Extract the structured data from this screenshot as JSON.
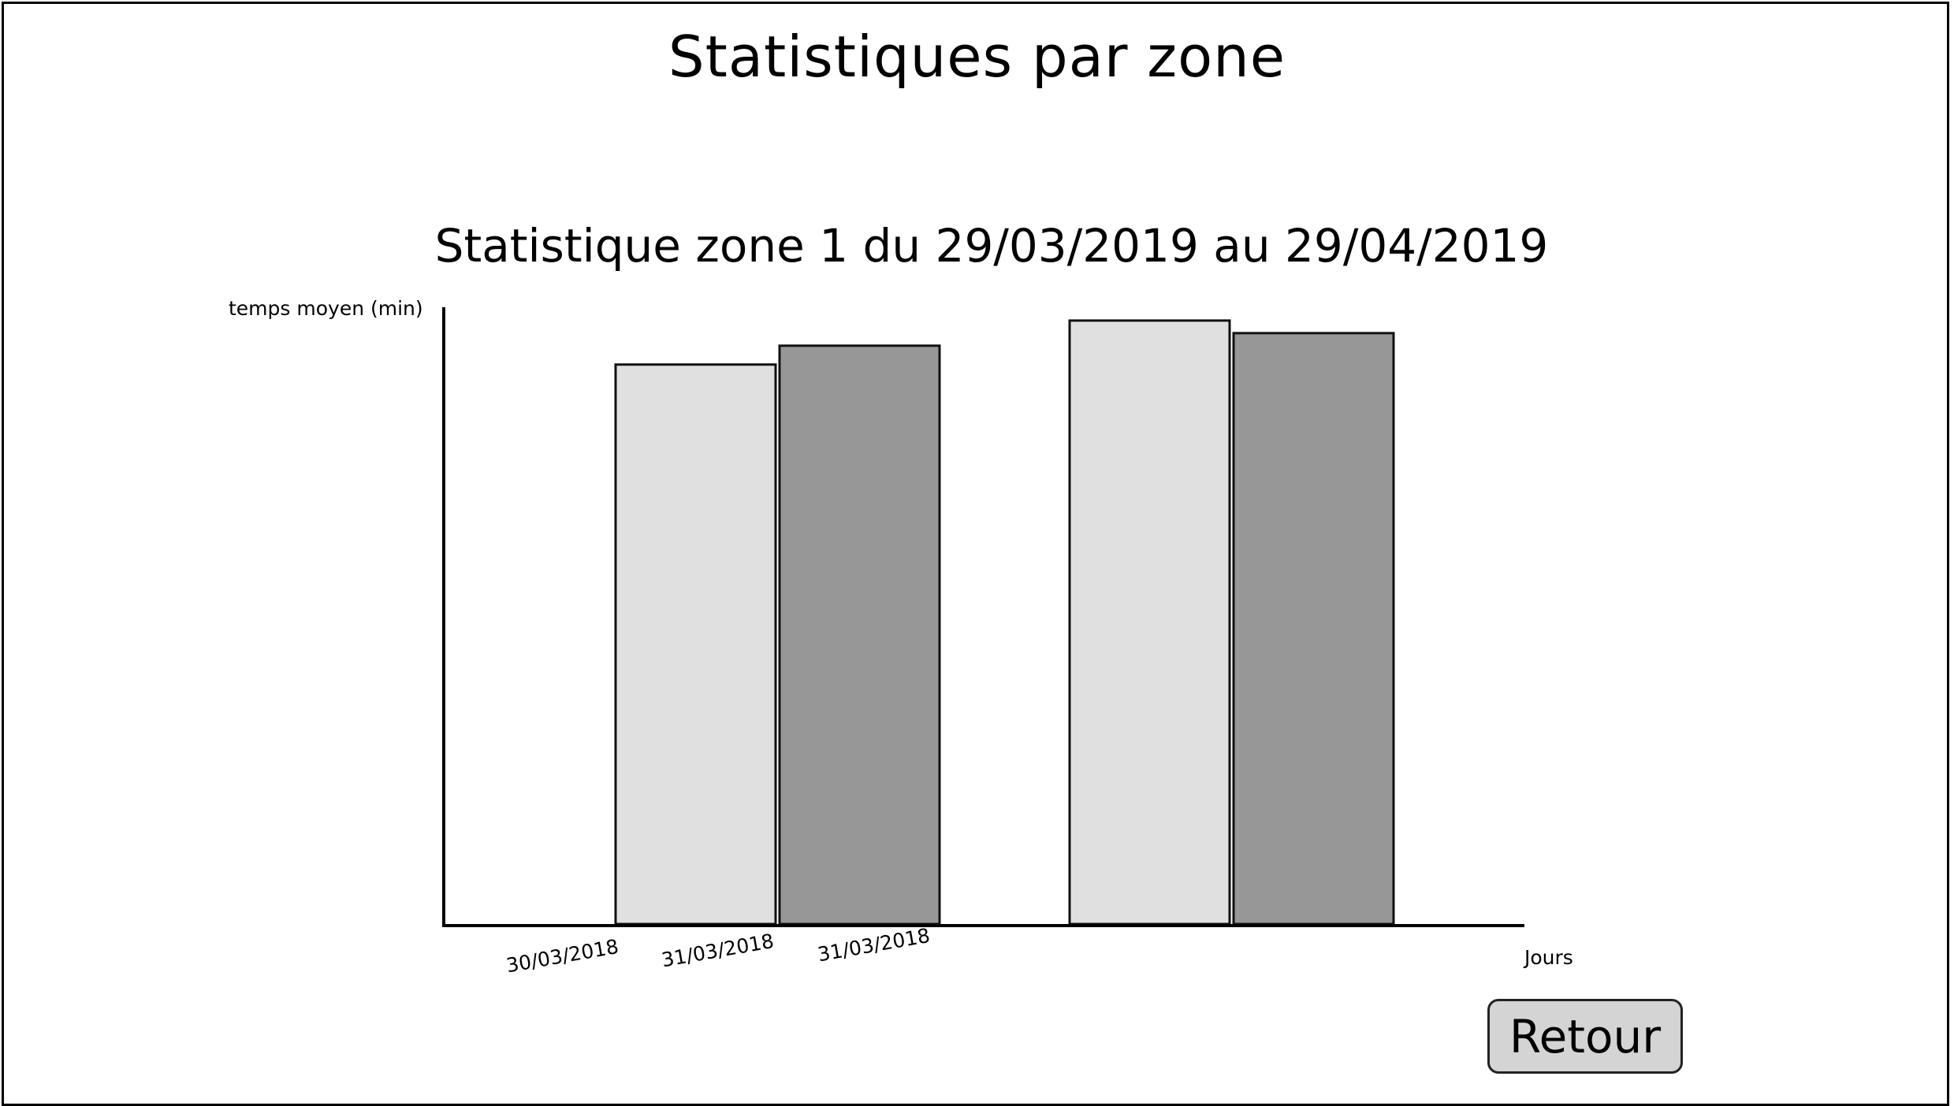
{
  "page": {
    "title": "Statistiques par zone"
  },
  "button": {
    "back_label": "Retour"
  },
  "chart_data": {
    "type": "bar",
    "title": "Statistique zone 1 du 29/03/2019 au 29/04/2019",
    "ylabel": "temps moyen (min)",
    "xlabel": "Jours",
    "tick_labels": [
      "30/03/2018",
      "31/03/2018",
      "31/03/2018"
    ],
    "ylim": [
      0,
      100
    ],
    "grid": false,
    "legend": "none",
    "bars": [
      {
        "value": 89,
        "color": "#e0e0e0"
      },
      {
        "value": 92,
        "color": "#979797"
      },
      {
        "value": 96,
        "color": "#e0e0e0"
      },
      {
        "value": 94,
        "color": "#979797"
      }
    ]
  }
}
